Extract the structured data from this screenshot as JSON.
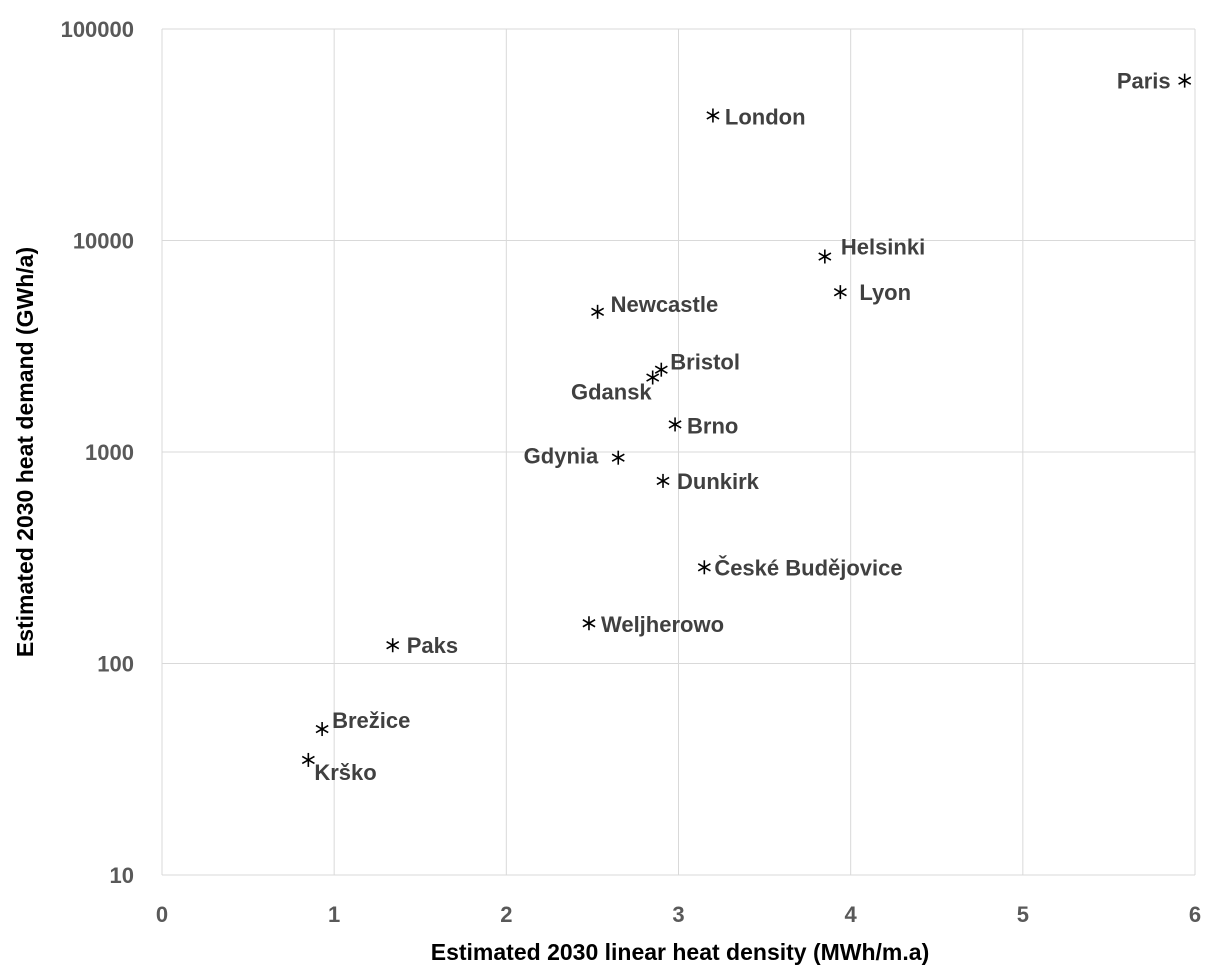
{
  "chart_data": {
    "type": "scatter",
    "xlabel": "Estimated 2030 linear heat density (MWh/m.a)",
    "ylabel": "Estimated 2030 heat demand (GWh/a)",
    "xlim": [
      0,
      6
    ],
    "ylim": [
      10,
      100000
    ],
    "y_scale": "log",
    "x_ticks": [
      "0",
      "1",
      "2",
      "3",
      "4",
      "5",
      "6"
    ],
    "y_ticks": [
      "10",
      "100",
      "1000",
      "10000",
      "100000"
    ],
    "grid": true,
    "marker": "asterisk",
    "marker_color": "#000000",
    "points": [
      {
        "label": "Paris",
        "x": 5.94,
        "y": 57000
      },
      {
        "label": "London",
        "x": 3.2,
        "y": 39000
      },
      {
        "label": "Helsinki",
        "x": 3.85,
        "y": 8400
      },
      {
        "label": "Lyon",
        "x": 3.94,
        "y": 5700
      },
      {
        "label": "Newcastle",
        "x": 2.53,
        "y": 4600
      },
      {
        "label": "Bristol",
        "x": 2.9,
        "y": 2450
      },
      {
        "label": "Gdansk",
        "x": 2.85,
        "y": 2250
      },
      {
        "label": "Brno",
        "x": 2.98,
        "y": 1350
      },
      {
        "label": "Gdynia",
        "x": 2.65,
        "y": 940
      },
      {
        "label": "Dunkirk",
        "x": 2.91,
        "y": 730
      },
      {
        "label": "České Budějovice",
        "x": 3.15,
        "y": 285
      },
      {
        "label": "Weljherowo",
        "x": 2.48,
        "y": 155
      },
      {
        "label": "Paks",
        "x": 1.34,
        "y": 122
      },
      {
        "label": "Brežice",
        "x": 0.93,
        "y": 49
      },
      {
        "label": "Krško",
        "x": 0.85,
        "y": 35
      }
    ]
  }
}
